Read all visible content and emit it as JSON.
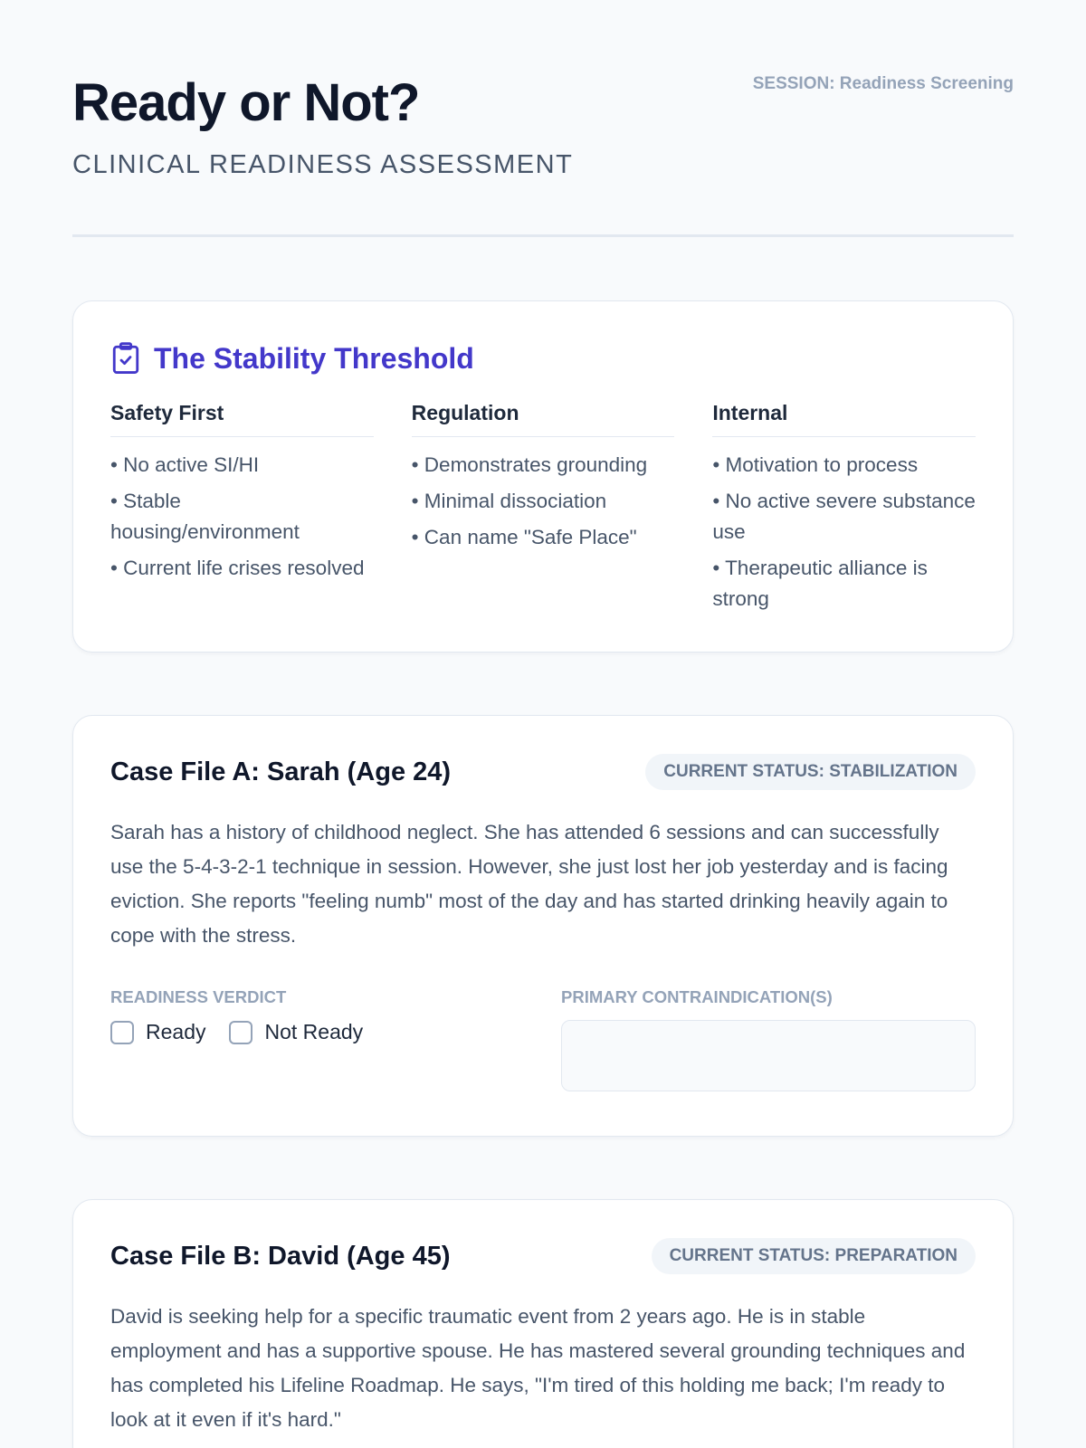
{
  "header": {
    "title": "Ready or Not?",
    "subtitle": "CLINICAL READINESS ASSESSMENT",
    "session": "SESSION: Readiness Screening"
  },
  "threshold": {
    "icon": "clipboard-check-icon",
    "title": "The Stability Threshold",
    "accent": "#4338ca",
    "columns": [
      {
        "heading": "Safety First",
        "items": [
          "• No active SI/HI",
          "• Stable housing/environment",
          "• Current life crises resolved"
        ]
      },
      {
        "heading": "Regulation",
        "items": [
          "• Demonstrates grounding",
          "• Minimal dissociation",
          "• Can name \"Safe Place\""
        ]
      },
      {
        "heading": "Internal",
        "items": [
          "• Motivation to process",
          "• No active severe substance use",
          "• Therapeutic alliance is strong"
        ]
      }
    ]
  },
  "cases": [
    {
      "title": "Case File A: Sarah (Age 24)",
      "status": "CURRENT STATUS: STABILIZATION",
      "description": "Sarah has a history of childhood neglect. She has attended 6 sessions and can successfully use the 5-4-3-2-1 technique in session. However, she just lost her job yesterday and is facing eviction. She reports \"feeling numb\" most of the day and has started drinking heavily again to cope with the stress.",
      "verdict_label": "READINESS VERDICT",
      "option_ready": "Ready",
      "option_not_ready": "Not Ready",
      "contra_label": "PRIMARY CONTRAINDICATION(S)",
      "contra_value": ""
    },
    {
      "title": "Case File B: David (Age 45)",
      "status": "CURRENT STATUS: PREPARATION",
      "description": "David is seeking help for a specific traumatic event from 2 years ago. He is in stable employment and has a supportive spouse. He has mastered several grounding techniques and has completed his Lifeline Roadmap. He says, \"I'm tired of this holding me back; I'm ready to look at it even if it's hard.\""
    }
  ]
}
